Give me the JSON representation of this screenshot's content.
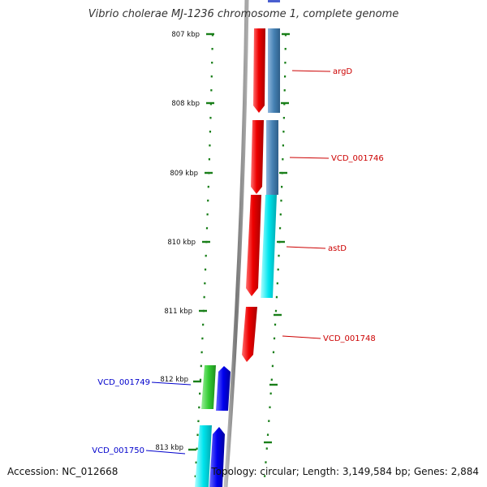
{
  "title": "Vibrio cholerae MJ-1236 chromosome 1, complete genome",
  "footer": {
    "accession": "Accession: NC_012668",
    "summary": "Topology: circular; Length: 3,149,584 bp; Genes: 2,884"
  },
  "colors": {
    "forward_cds": "#e60000",
    "reverse_gene_blue": "#4682b4",
    "reverse_gene_cyan": "#00e5ee",
    "inner_forward_blue": "#0000ee",
    "inner_green": "#33cc33",
    "tick": "#1a7f1a",
    "label_red": "#cc0000",
    "label_blue": "#0000cc",
    "backbone": "#888888"
  },
  "ruler": {
    "ticks": [
      "807 kbp",
      "808 kbp",
      "809 kbp",
      "810 kbp",
      "811 kbp",
      "812 kbp",
      "813 kbp"
    ]
  },
  "features": [
    {
      "name": "argD",
      "track": "right",
      "color_key": "reverse_gene_blue"
    },
    {
      "name": "VCD_001746",
      "track": "right",
      "color_key": "reverse_gene_blue"
    },
    {
      "name": "astD",
      "track": "right",
      "color_key": "reverse_gene_cyan"
    },
    {
      "name": "VCD_001748",
      "track": "right",
      "color_key": "forward_cds"
    },
    {
      "name": "VCD_001749",
      "track": "left",
      "color_key": "inner_forward_blue"
    },
    {
      "name": "VCD_001750",
      "track": "left",
      "color_key": "reverse_gene_cyan"
    }
  ]
}
